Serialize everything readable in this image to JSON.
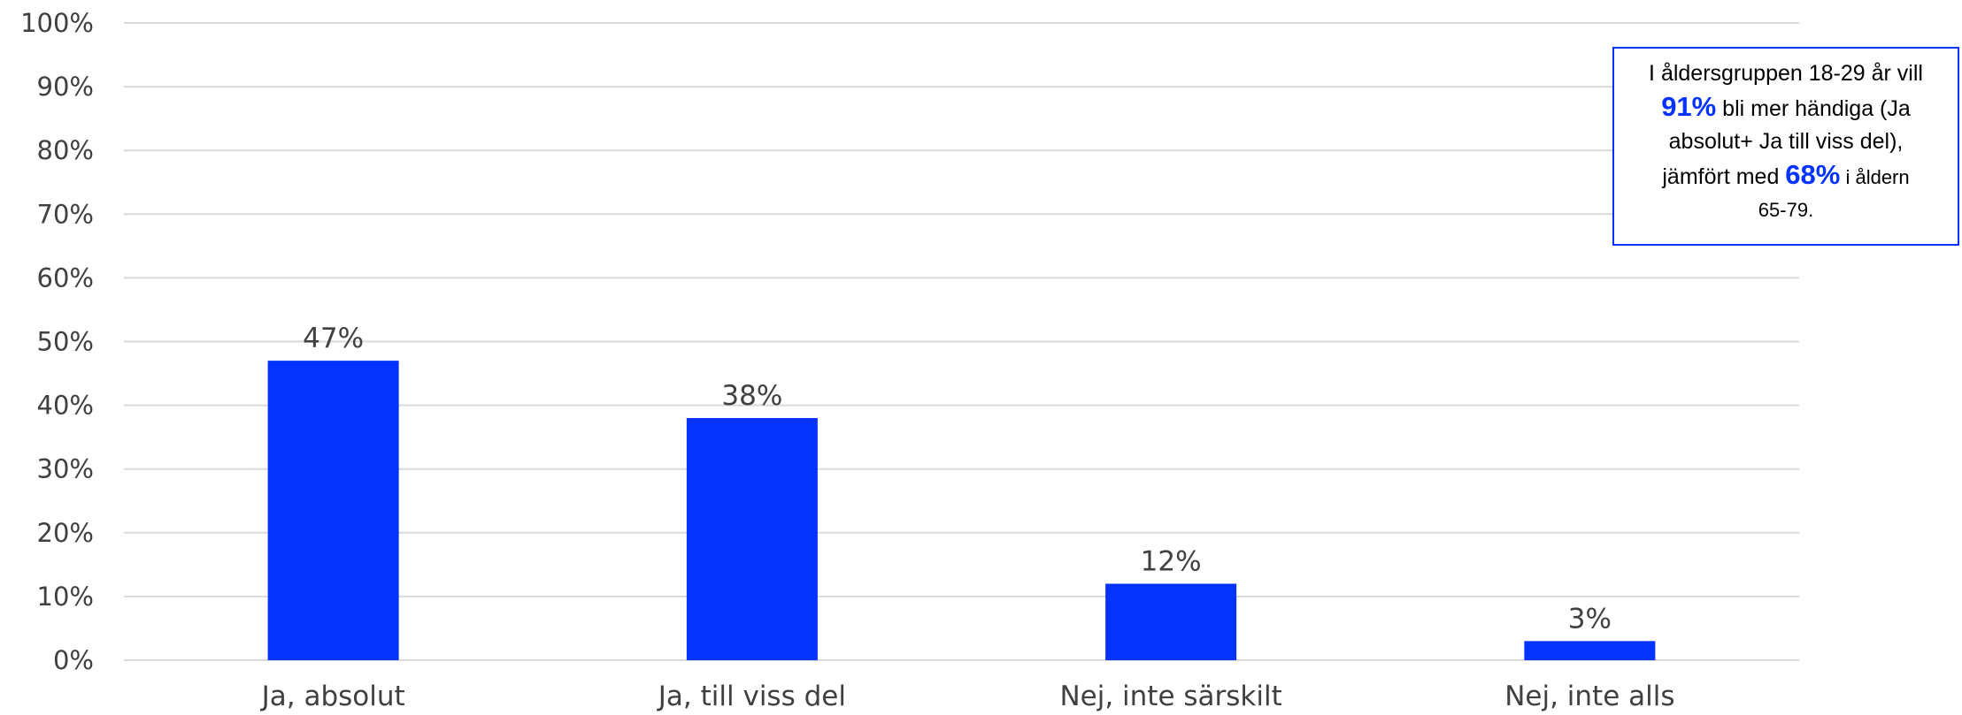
{
  "chart_data": {
    "type": "bar",
    "categories": [
      "Ja, absolut",
      "Ja, till viss del",
      "Nej, inte särskilt",
      "Nej, inte alls"
    ],
    "values": [
      47,
      38,
      12,
      3
    ],
    "value_labels": [
      "47%",
      "38%",
      "12%",
      "3%"
    ],
    "title": "",
    "xlabel": "",
    "ylabel": "",
    "ylim": [
      0,
      100
    ],
    "yticks": [
      0,
      10,
      20,
      30,
      40,
      50,
      60,
      70,
      80,
      90,
      100
    ],
    "ytick_labels": [
      "0%",
      "10%",
      "20%",
      "30%",
      "40%",
      "50%",
      "60%",
      "70%",
      "80%",
      "90%",
      "100%"
    ],
    "grid": true,
    "legend": false,
    "bar_color": "#0433FF",
    "gridline_color": "#D9D9D9",
    "text_color": "#404040"
  },
  "callout": {
    "line1": "I åldersgruppen 18-29 år vill",
    "highlight1": "91%",
    "text2": " bli mer händiga (Ja",
    "line3": "absolut+ Ja till viss del),",
    "text4": "jämfört med ",
    "highlight2": "68%",
    "text4b": " i åldern",
    "line5": "65-79.",
    "border_color": "#0433FF",
    "highlight_color": "#0433FF"
  }
}
